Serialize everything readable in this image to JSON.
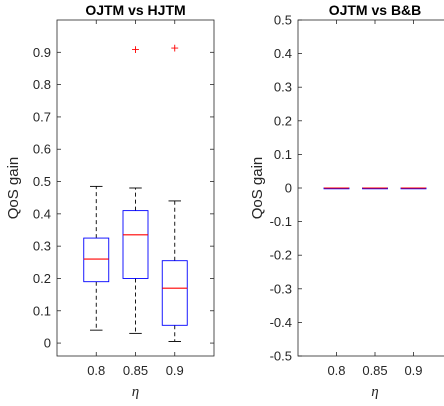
{
  "chart_data": [
    {
      "type": "boxplot",
      "title": "OJTM vs HJTM",
      "xlabel": "η",
      "ylabel": "QoS gain",
      "categories": [
        "0.8",
        "0.85",
        "0.9"
      ],
      "ylim": [
        -0.04,
        1.0
      ],
      "yticks": [
        "0",
        "0.1",
        "0.2",
        "0.3",
        "0.4",
        "0.5",
        "0.6",
        "0.7",
        "0.8",
        "0.9"
      ],
      "grid": false,
      "boxes": [
        {
          "category": "0.8",
          "whisker_low": 0.04,
          "q1": 0.19,
          "median": 0.26,
          "q3": 0.325,
          "whisker_high": 0.485,
          "outliers": []
        },
        {
          "category": "0.85",
          "whisker_low": 0.03,
          "q1": 0.2,
          "median": 0.335,
          "q3": 0.41,
          "whisker_high": 0.48,
          "outliers": [
            0.91
          ]
        },
        {
          "category": "0.9",
          "whisker_low": 0.005,
          "q1": 0.055,
          "median": 0.17,
          "q3": 0.255,
          "whisker_high": 0.44,
          "outliers": [
            0.915
          ]
        }
      ]
    },
    {
      "type": "boxplot",
      "title": "OJTM vs B&B",
      "xlabel": "η",
      "ylabel": "QoS gain",
      "categories": [
        "0.8",
        "0.85",
        "0.9"
      ],
      "ylim": [
        -0.5,
        0.5
      ],
      "yticks": [
        "-0.5",
        "-0.4",
        "-0.3",
        "-0.2",
        "-0.1",
        "0",
        "0.1",
        "0.2",
        "0.3",
        "0.4",
        "0.5"
      ],
      "grid": false,
      "boxes": [
        {
          "category": "0.8",
          "whisker_low": 0,
          "q1": 0,
          "median": 0,
          "q3": 0,
          "whisker_high": 0,
          "outliers": []
        },
        {
          "category": "0.85",
          "whisker_low": 0,
          "q1": 0,
          "median": 0,
          "q3": 0,
          "whisker_high": 0,
          "outliers": []
        },
        {
          "category": "0.9",
          "whisker_low": 0,
          "q1": 0,
          "median": 0,
          "q3": 0,
          "whisker_high": 0,
          "outliers": []
        }
      ]
    }
  ],
  "colors": {
    "box": "#0000ff",
    "median": "#ff0000",
    "whisker": "#000000",
    "outlier": "#ff0000",
    "axis": "#262626"
  }
}
